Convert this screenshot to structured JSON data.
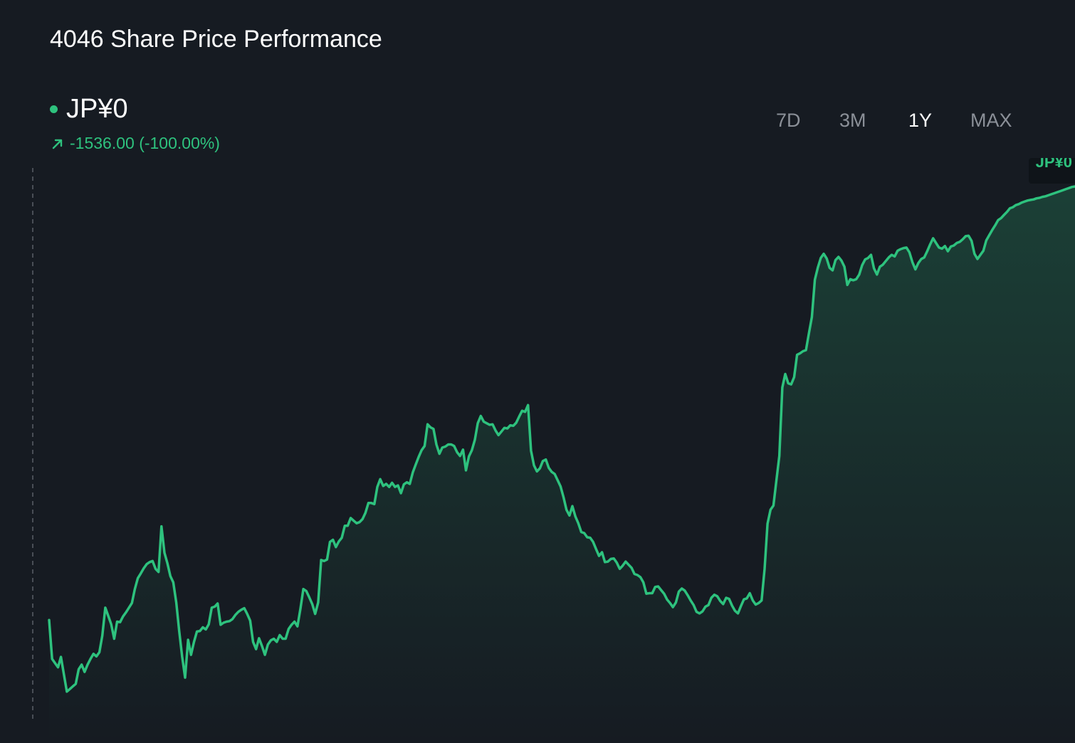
{
  "header": {
    "title": "4046 Share Price Performance"
  },
  "price": {
    "current": "JP¥0",
    "change": "-1536.00 (-100.00%)"
  },
  "ranges": {
    "tabs": [
      "7D",
      "3M",
      "1Y",
      "MAX"
    ],
    "active": "1Y"
  },
  "end_label": "JP¥0",
  "colors": {
    "background": "#161b22",
    "line": "#2ec27e",
    "inactive_tab": "#8b9098"
  },
  "chart_data": {
    "type": "area",
    "title": "4046 Share Price Performance",
    "xlabel": "",
    "ylabel": "",
    "grid": false,
    "x_range": [
      0,
      1
    ],
    "y_range": [
      0,
      1
    ],
    "series": [
      {
        "values": [
          0.163,
          0.088,
          0.08,
          0.072,
          0.092,
          0.058,
          0.025,
          0.03,
          0.035,
          0.04,
          0.068,
          0.077,
          0.063,
          0.077,
          0.088,
          0.098,
          0.093,
          0.101,
          0.133,
          0.187,
          0.171,
          0.155,
          0.127,
          0.16,
          0.159,
          0.17,
          0.178,
          0.187,
          0.196,
          0.223,
          0.244,
          0.253,
          0.263,
          0.271,
          0.275,
          0.277,
          0.262,
          0.256,
          0.344,
          0.293,
          0.273,
          0.248,
          0.236,
          0.197,
          0.142,
          0.092,
          0.052,
          0.125,
          0.096,
          0.121,
          0.141,
          0.142,
          0.149,
          0.145,
          0.155,
          0.187,
          0.189,
          0.195,
          0.154,
          0.158,
          0.16,
          0.161,
          0.165,
          0.173,
          0.179,
          0.183,
          0.186,
          0.175,
          0.162,
          0.121,
          0.107,
          0.128,
          0.113,
          0.096,
          0.116,
          0.124,
          0.127,
          0.121,
          0.134,
          0.127,
          0.127,
          0.146,
          0.154,
          0.16,
          0.151,
          0.185,
          0.223,
          0.219,
          0.207,
          0.194,
          0.175,
          0.197,
          0.279,
          0.277,
          0.28,
          0.314,
          0.318,
          0.304,
          0.315,
          0.322,
          0.345,
          0.345,
          0.36,
          0.355,
          0.35,
          0.352,
          0.358,
          0.37,
          0.389,
          0.389,
          0.387,
          0.42,
          0.435,
          0.422,
          0.426,
          0.42,
          0.428,
          0.42,
          0.423,
          0.408,
          0.425,
          0.429,
          0.426,
          0.448,
          0.463,
          0.478,
          0.491,
          0.499,
          0.541,
          0.535,
          0.532,
          0.502,
          0.484,
          0.496,
          0.498,
          0.502,
          0.502,
          0.499,
          0.487,
          0.48,
          0.492,
          0.452,
          0.479,
          0.491,
          0.511,
          0.543,
          0.557,
          0.546,
          0.543,
          0.54,
          0.541,
          0.529,
          0.52,
          0.527,
          0.534,
          0.533,
          0.539,
          0.538,
          0.544,
          0.556,
          0.567,
          0.565,
          0.578,
          0.49,
          0.462,
          0.45,
          0.456,
          0.47,
          0.473,
          0.457,
          0.449,
          0.445,
          0.433,
          0.421,
          0.4,
          0.376,
          0.365,
          0.383,
          0.363,
          0.35,
          0.333,
          0.331,
          0.323,
          0.322,
          0.314,
          0.3,
          0.287,
          0.294,
          0.275,
          0.276,
          0.281,
          0.282,
          0.274,
          0.262,
          0.268,
          0.276,
          0.27,
          0.264,
          0.252,
          0.25,
          0.246,
          0.236,
          0.214,
          0.215,
          0.215,
          0.227,
          0.228,
          0.221,
          0.214,
          0.203,
          0.196,
          0.188,
          0.197,
          0.218,
          0.224,
          0.22,
          0.211,
          0.201,
          0.192,
          0.179,
          0.176,
          0.18,
          0.189,
          0.192,
          0.206,
          0.212,
          0.209,
          0.2,
          0.194,
          0.206,
          0.204,
          0.191,
          0.181,
          0.176,
          0.19,
          0.203,
          0.205,
          0.215,
          0.201,
          0.193,
          0.196,
          0.201,
          0.262,
          0.349,
          0.376,
          0.384,
          0.433,
          0.48,
          0.612,
          0.638,
          0.62,
          0.618,
          0.632,
          0.675,
          0.678,
          0.682,
          0.684,
          0.717,
          0.748,
          0.82,
          0.843,
          0.862,
          0.87,
          0.861,
          0.843,
          0.838,
          0.858,
          0.864,
          0.857,
          0.845,
          0.81,
          0.821,
          0.819,
          0.821,
          0.83,
          0.848,
          0.859,
          0.862,
          0.868,
          0.842,
          0.83,
          0.845,
          0.849,
          0.856,
          0.863,
          0.868,
          0.865,
          0.876,
          0.879,
          0.881,
          0.882,
          0.873,
          0.854,
          0.84,
          0.852,
          0.86,
          0.863,
          0.875,
          0.888,
          0.9,
          0.891,
          0.882,
          0.88,
          0.885,
          0.875,
          0.884,
          0.886,
          0.891,
          0.893,
          0.898,
          0.904,
          0.905,
          0.895,
          0.87,
          0.86,
          0.868,
          0.876,
          0.896,
          0.906,
          0.916,
          0.925,
          0.935,
          0.939,
          0.945,
          0.951,
          0.958,
          0.96,
          0.964,
          0.966,
          0.969,
          0.971,
          0.973,
          0.974,
          0.975,
          0.977,
          0.978,
          0.98,
          0.981,
          0.983,
          0.985,
          0.987,
          0.989,
          0.991,
          0.993,
          0.995,
          0.997,
          0.999,
          1.0
        ]
      }
    ]
  }
}
